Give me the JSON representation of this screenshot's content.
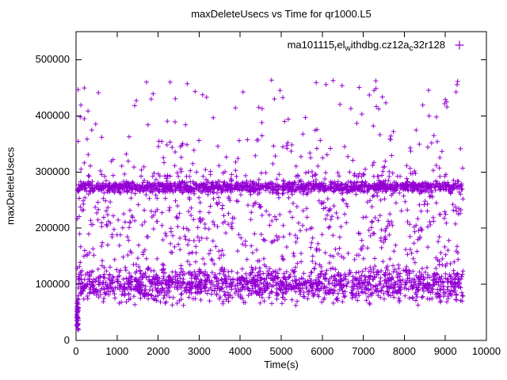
{
  "chart_data": {
    "type": "scatter",
    "title": "maxDeleteUsecs vs Time for qr1000.L5",
    "xlabel": "Time(s)",
    "ylabel": "maxDeleteUsecs",
    "xlim": [
      0,
      10000
    ],
    "ylim": [
      0,
      550000
    ],
    "xticks": [
      0,
      1000,
      2000,
      3000,
      4000,
      5000,
      6000,
      7000,
      8000,
      9000,
      10000
    ],
    "yticks": [
      0,
      100000,
      200000,
      300000,
      400000,
      500000
    ],
    "grid": false,
    "legend_position": "top-right-inside",
    "marker": "plus",
    "color": "#9400d3",
    "series_name": "ma101115_rel_withdbg.cz12a_c32r128",
    "legend_segments": [
      {
        "t": "ma101115",
        "sub": false
      },
      {
        "t": "r",
        "sub": true
      },
      {
        "t": "el",
        "sub": false
      },
      {
        "t": "w",
        "sub": true
      },
      {
        "t": "ithdbg.cz12a",
        "sub": false
      },
      {
        "t": "c",
        "sub": true
      },
      {
        "t": "32r128",
        "sub": false
      }
    ],
    "x_data_range": [
      15,
      9430
    ],
    "clusters": [
      {
        "name": "startup-streak",
        "dist": "uniform",
        "x": [
          15,
          60
        ],
        "y": [
          18000,
          78000
        ],
        "count": 45
      },
      {
        "name": "lower-dense-band",
        "dist": "normal",
        "x": [
          25,
          9430
        ],
        "y_mean": 100000,
        "y_sd": 16000,
        "y_clip": [
          62000,
          148000
        ],
        "count": 1500
      },
      {
        "name": "main-dense-band",
        "dist": "normal",
        "x": [
          25,
          9430
        ],
        "y_mean": 273000,
        "y_sd": 5000,
        "y_clip": [
          258000,
          290000
        ],
        "count": 1300
      },
      {
        "name": "mid-scatter",
        "dist": "uniform",
        "x": [
          25,
          9430
        ],
        "y": [
          140000,
          258000
        ],
        "count": 430
      },
      {
        "name": "upper-scatter",
        "dist": "pow",
        "x": [
          25,
          9430
        ],
        "y": [
          292000,
          465000
        ],
        "bias": 2,
        "count": 240
      }
    ]
  }
}
